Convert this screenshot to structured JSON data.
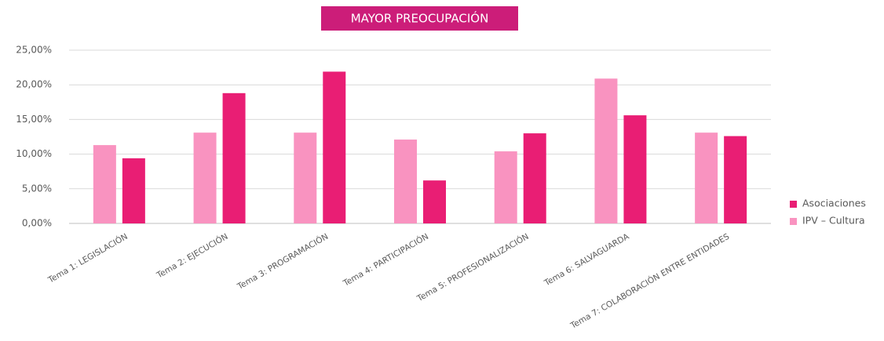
{
  "chart_data": {
    "type": "bar",
    "title": "MAYOR PREOCUPACIÓN",
    "categories": [
      "Tema 1: LEGISLACIÓN",
      "Tema 2: EJECUCIÓN",
      "Tema 3: PROGRAMACIÓN",
      "Tema 4: PARTICIPACIÓN",
      "Tema 5: PROFESIONALIZACIÓN",
      "Tema 6: SALVAGUARDA",
      "Tema 7: COLABORACIÓN ENTRE ENTIDADES"
    ],
    "series": [
      {
        "name": "IPV – Cultura",
        "color": "#f993c0",
        "values": [
          11.3,
          13.1,
          13.1,
          12.1,
          10.4,
          20.9,
          13.1
        ]
      },
      {
        "name": "Asociaciones",
        "color": "#e91e74",
        "values": [
          9.4,
          18.8,
          21.9,
          6.2,
          13.0,
          15.6,
          12.6
        ]
      }
    ],
    "ylim": [
      0,
      25
    ],
    "yticks": [
      {
        "value": 0,
        "label": "0,00%"
      },
      {
        "value": 5,
        "label": "5,00%"
      },
      {
        "value": 10,
        "label": "10,00%"
      },
      {
        "value": 15,
        "label": "15,00%"
      },
      {
        "value": 20,
        "label": "20,00%"
      },
      {
        "value": 25,
        "label": "25,00%"
      }
    ],
    "grid": true,
    "legend": "right"
  }
}
